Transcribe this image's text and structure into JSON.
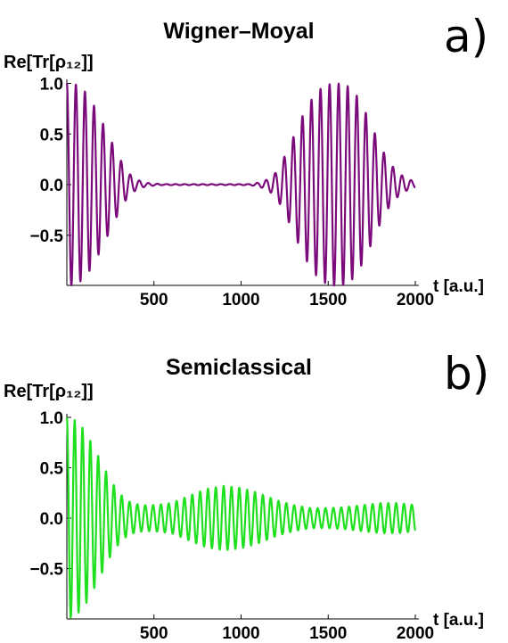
{
  "chart_data": [
    {
      "type": "line",
      "panel_label": "a)",
      "title": "Wigner–Moyal",
      "ylabel": "Re[Tr[ρ₁₂]]",
      "xlabel": "t [a.u.]",
      "xlim": [
        0,
        2000
      ],
      "ylim": [
        -1.0,
        1.0
      ],
      "xticks": [
        500,
        1000,
        1500,
        2000
      ],
      "yticks": [
        1.0,
        0.5,
        0.0,
        -0.5
      ],
      "ytick_labels": [
        "1.0",
        "0.5",
        "0.0",
        "−0.5"
      ],
      "grid": false,
      "series": [
        {
          "color": "#7b0a7b",
          "period": 52,
          "envelope": [
            [
              0,
              1.0
            ],
            [
              50,
              0.99
            ],
            [
              100,
              0.93
            ],
            [
              150,
              0.8
            ],
            [
              200,
              0.63
            ],
            [
              250,
              0.45
            ],
            [
              300,
              0.27
            ],
            [
              350,
              0.12
            ],
            [
              400,
              0.05
            ],
            [
              450,
              0.02
            ],
            [
              500,
              0.01
            ],
            [
              550,
              0.005
            ],
            [
              1050,
              0.005
            ],
            [
              1100,
              0.02
            ],
            [
              1150,
              0.05
            ],
            [
              1200,
              0.12
            ],
            [
              1250,
              0.28
            ],
            [
              1300,
              0.47
            ],
            [
              1350,
              0.67
            ],
            [
              1400,
              0.83
            ],
            [
              1450,
              0.94
            ],
            [
              1500,
              0.99
            ],
            [
              1550,
              1.0
            ],
            [
              1600,
              0.99
            ],
            [
              1650,
              0.92
            ],
            [
              1700,
              0.77
            ],
            [
              1750,
              0.58
            ],
            [
              1800,
              0.38
            ],
            [
              1850,
              0.22
            ],
            [
              1900,
              0.12
            ],
            [
              1950,
              0.06
            ],
            [
              2000,
              0.03
            ]
          ]
        }
      ]
    },
    {
      "type": "line",
      "panel_label": "b)",
      "title": "Semiclassical",
      "ylabel": "Re[Tr[ρ₁₂]]",
      "xlabel": "t [a.u.]",
      "xlim": [
        0,
        2000
      ],
      "ylim": [
        -1.0,
        1.0
      ],
      "xticks": [
        500,
        1000,
        1500,
        2000
      ],
      "yticks": [
        1.0,
        0.5,
        0.0,
        -0.5
      ],
      "ytick_labels": [
        "1.0",
        "0.5",
        "0.0",
        "−0.5"
      ],
      "grid": false,
      "series": [
        {
          "color": "#1ee01e",
          "period": 45,
          "envelope": [
            [
              0,
              1.0
            ],
            [
              50,
              0.97
            ],
            [
              100,
              0.88
            ],
            [
              150,
              0.72
            ],
            [
              200,
              0.55
            ],
            [
              250,
              0.38
            ],
            [
              300,
              0.25
            ],
            [
              350,
              0.17
            ],
            [
              400,
              0.14
            ],
            [
              450,
              0.13
            ],
            [
              500,
              0.13
            ],
            [
              600,
              0.15
            ],
            [
              700,
              0.22
            ],
            [
              800,
              0.29
            ],
            [
              900,
              0.32
            ],
            [
              1000,
              0.3
            ],
            [
              1100,
              0.25
            ],
            [
              1200,
              0.18
            ],
            [
              1300,
              0.13
            ],
            [
              1400,
              0.1
            ],
            [
              1500,
              0.1
            ],
            [
              1600,
              0.11
            ],
            [
              1700,
              0.13
            ],
            [
              1800,
              0.15
            ],
            [
              1900,
              0.15
            ],
            [
              2000,
              0.13
            ]
          ]
        }
      ]
    }
  ]
}
